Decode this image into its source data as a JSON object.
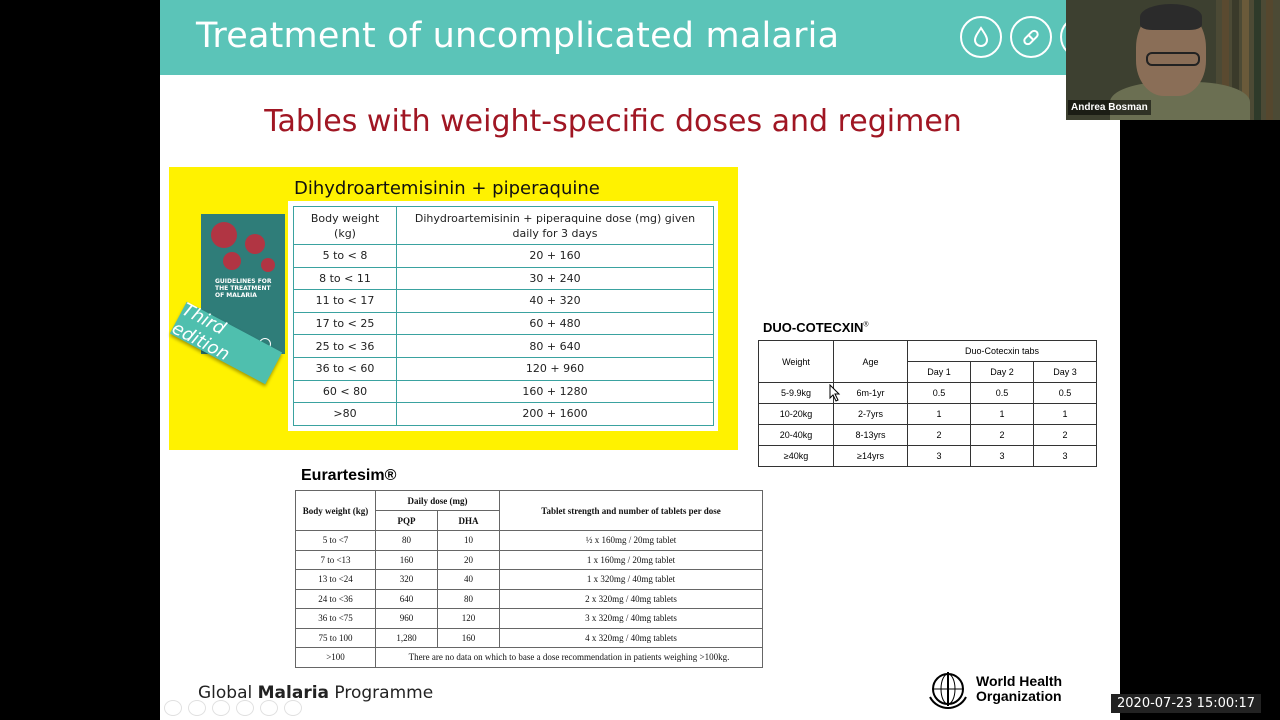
{
  "slide": {
    "title": "Treatment of uncomplicated malaria",
    "subtitle": "Tables with weight-specific doses and regimen",
    "book": {
      "title": "GUIDELINES FOR THE TREATMENT OF MALARIA",
      "edition_label": "Third edition"
    },
    "dha_table": {
      "heading": "Dihydroartemisinin + piperaquine",
      "headers": [
        "Body weight (kg)",
        "Dihydroartemisinin + piperaquine dose (mg) given daily for 3 days"
      ],
      "rows": [
        [
          "5 to < 8",
          "20 + 160"
        ],
        [
          "8 to < 11",
          "30 + 240"
        ],
        [
          "11 to < 17",
          "40 + 320"
        ],
        [
          "17 to < 25",
          "60 + 480"
        ],
        [
          "25 to < 36",
          "80 + 640"
        ],
        [
          "36 to < 60",
          "120 + 960"
        ],
        [
          "60 < 80",
          "160 + 1280"
        ],
        [
          ">80",
          "200 + 1600"
        ]
      ]
    },
    "duo_table": {
      "heading": "DUO-COTECXIN",
      "heading_mark": "®",
      "headers": {
        "weight": "Weight",
        "age": "Age",
        "group": "Duo-Cotecxin tabs",
        "days": [
          "Day 1",
          "Day 2",
          "Day 3"
        ]
      },
      "rows": [
        [
          "5-9.9kg",
          "6m-1yr",
          "0.5",
          "0.5",
          "0.5"
        ],
        [
          "10-20kg",
          "2-7yrs",
          "1",
          "1",
          "1"
        ],
        [
          "20-40kg",
          "8-13yrs",
          "2",
          "2",
          "2"
        ],
        [
          "≥40kg",
          "≥14yrs",
          "3",
          "3",
          "3"
        ]
      ]
    },
    "eur_table": {
      "heading": "Eurartesim®",
      "headers": {
        "body_weight": "Body weight (kg)",
        "daily_dose": "Daily dose (mg)",
        "pqp": "PQP",
        "dha": "DHA",
        "tablet": "Tablet strength and number of tablets per dose"
      },
      "rows": [
        [
          "5 to <7",
          "80",
          "10",
          "½ x 160mg / 20mg tablet"
        ],
        [
          "7 to <13",
          "160",
          "20",
          "1 x 160mg / 20mg tablet"
        ],
        [
          "13 to <24",
          "320",
          "40",
          "1 x 320mg / 40mg tablet"
        ],
        [
          "24 to <36",
          "640",
          "80",
          "2 x 320mg / 40mg tablets"
        ],
        [
          "36 to <75",
          "960",
          "120",
          "3 x 320mg / 40mg tablets"
        ],
        [
          "75 to 100",
          "1,280",
          "160",
          "4 x 320mg / 40mg tablets"
        ]
      ],
      "last_row": {
        "weight": ">100",
        "note": "There are no data on which to base a dose recommendation in patients weighing >100kg."
      }
    },
    "footer": {
      "prefix": "Global ",
      "bold": "Malaria",
      "suffix": " Programme"
    },
    "who": {
      "line1": "World Health",
      "line2": "Organization"
    }
  },
  "video": {
    "participant_name": "Andrea Bosman",
    "timestamp": "2020-07-23 15:00:17"
  },
  "colors": {
    "banner": "#5bc4b8",
    "subtitle": "#a01623",
    "highlight": "#fff200",
    "table_border": "#3aa2a0"
  }
}
